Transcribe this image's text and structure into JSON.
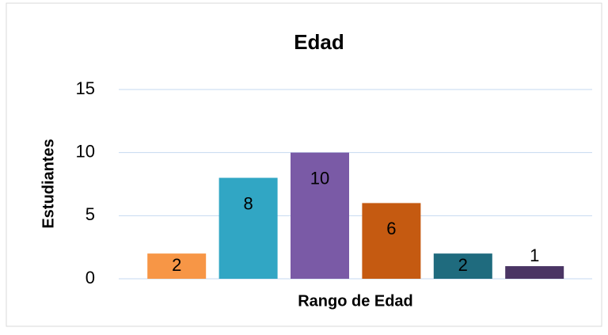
{
  "chart_data": {
    "type": "bar",
    "title": "Edad",
    "y_label": "Estudiantes",
    "x_label": "Rango de Edad",
    "categories": [
      null,
      null,
      null,
      null,
      null,
      null
    ],
    "values": [
      2,
      8,
      10,
      6,
      2,
      1
    ],
    "colors": [
      "#f79646",
      "#31a6c4",
      "#7a5aa6",
      "#c55a11",
      "#1f6b7e",
      "#4a3564"
    ],
    "ylim": [
      0,
      15
    ],
    "yticks": [
      0,
      5,
      10,
      15
    ],
    "grid": true
  }
}
